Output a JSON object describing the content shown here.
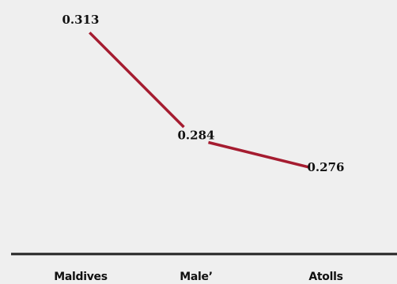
{
  "chart_data": {
    "type": "line",
    "categories": [
      "Maldives",
      "Male’",
      "Atolls"
    ],
    "values": [
      0.313,
      0.284,
      0.276
    ],
    "data_labels": [
      "0.313",
      "0.284",
      "0.276"
    ],
    "ylim": [
      0.262,
      0.313
    ],
    "grid": false,
    "legend": "none",
    "colors": {
      "line": "#a51c30",
      "axis": "#222222",
      "background": "#efefef",
      "text": "#111111"
    }
  }
}
